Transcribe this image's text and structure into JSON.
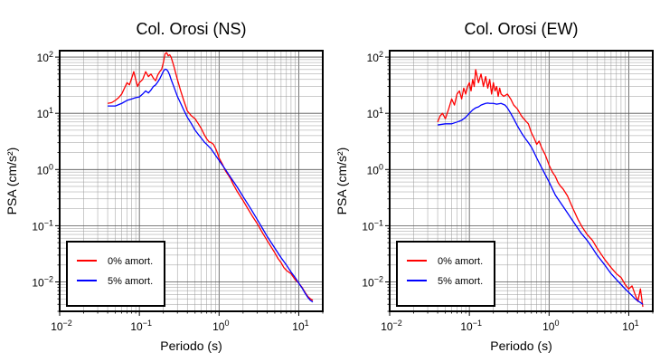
{
  "chart_data": [
    {
      "type": "line",
      "title": "Col. Orosi (NS)",
      "xlabel": "Periodo (s)",
      "ylabel": "PSA (cm/s²)",
      "xscale": "log",
      "yscale": "log",
      "xlim": [
        0.01,
        20
      ],
      "ylim": [
        0.003,
        130
      ],
      "grid": true,
      "legend_position": "bottom-left",
      "x_ticks": [
        {
          "base": "10",
          "exp": "−2"
        },
        {
          "base": "10",
          "exp": "−1"
        },
        {
          "base": "10",
          "exp": "0"
        },
        {
          "base": "10",
          "exp": "1"
        }
      ],
      "y_ticks": [
        {
          "base": "10",
          "exp": "−2"
        },
        {
          "base": "10",
          "exp": "−1"
        },
        {
          "base": "10",
          "exp": "0"
        },
        {
          "base": "10",
          "exp": "1"
        },
        {
          "base": "10",
          "exp": "2"
        }
      ],
      "series": [
        {
          "name": "0% amort.",
          "color": "#ff0000",
          "x": [
            0.04,
            0.045,
            0.05,
            0.055,
            0.06,
            0.065,
            0.07,
            0.075,
            0.08,
            0.085,
            0.09,
            0.095,
            0.1,
            0.11,
            0.12,
            0.13,
            0.14,
            0.15,
            0.16,
            0.17,
            0.18,
            0.19,
            0.2,
            0.21,
            0.22,
            0.23,
            0.24,
            0.25,
            0.27,
            0.3,
            0.33,
            0.36,
            0.4,
            0.45,
            0.5,
            0.55,
            0.6,
            0.65,
            0.7,
            0.75,
            0.8,
            0.85,
            0.9,
            0.95,
            1.0,
            1.1,
            1.2,
            1.3,
            1.4,
            1.5,
            1.7,
            2.0,
            2.3,
            2.6,
            3.0,
            3.5,
            4.0,
            4.5,
            5.0,
            5.5,
            6.0,
            6.5,
            7.0,
            8.0,
            9.0,
            10.0,
            11.0,
            12.0,
            13.0,
            14.0,
            15.0
          ],
          "y": [
            15,
            15.5,
            17,
            19,
            22,
            28,
            35,
            32,
            42,
            55,
            40,
            30,
            35,
            40,
            55,
            45,
            50,
            42,
            38,
            48,
            55,
            60,
            80,
            115,
            120,
            105,
            110,
            100,
            70,
            40,
            25,
            17,
            11,
            9,
            8,
            6.5,
            5.3,
            4.2,
            3.5,
            3.1,
            3.0,
            2.8,
            2.4,
            2.0,
            1.6,
            1.25,
            0.95,
            0.8,
            0.68,
            0.55,
            0.4,
            0.28,
            0.2,
            0.15,
            0.11,
            0.075,
            0.055,
            0.042,
            0.033,
            0.026,
            0.022,
            0.018,
            0.016,
            0.014,
            0.011,
            0.0095,
            0.008,
            0.0065,
            0.0055,
            0.005,
            0.0047
          ]
        },
        {
          "name": "5% amort.",
          "color": "#0000ff",
          "x": [
            0.04,
            0.05,
            0.06,
            0.07,
            0.08,
            0.09,
            0.1,
            0.11,
            0.12,
            0.13,
            0.14,
            0.15,
            0.16,
            0.17,
            0.18,
            0.19,
            0.2,
            0.21,
            0.22,
            0.23,
            0.24,
            0.25,
            0.27,
            0.3,
            0.33,
            0.36,
            0.4,
            0.45,
            0.5,
            0.55,
            0.6,
            0.65,
            0.7,
            0.8,
            0.9,
            1.0,
            1.2,
            1.4,
            1.7,
            2.0,
            2.5,
            3.0,
            3.5,
            4.0,
            5.0,
            6.0,
            7.0,
            8.0,
            9.0,
            10.0,
            11.0,
            12.0,
            13.0,
            14.0,
            15.0
          ],
          "y": [
            13.5,
            13.5,
            15,
            17,
            18,
            19,
            19.5,
            22,
            25,
            23,
            26,
            30,
            32,
            36,
            41,
            48,
            56,
            61,
            60,
            55,
            48,
            40,
            30,
            20,
            15,
            11.5,
            8.5,
            6.5,
            5.0,
            4.2,
            3.6,
            3.1,
            2.8,
            2.3,
            1.8,
            1.45,
            1.0,
            0.72,
            0.48,
            0.33,
            0.2,
            0.13,
            0.09,
            0.065,
            0.04,
            0.027,
            0.02,
            0.015,
            0.012,
            0.0095,
            0.0078,
            0.0063,
            0.0053,
            0.0047,
            0.0044
          ]
        }
      ]
    },
    {
      "type": "line",
      "title": "Col. Orosi (EW)",
      "xlabel": "Periodo (s)",
      "ylabel": "PSA (cm/s²)",
      "xscale": "log",
      "yscale": "log",
      "xlim": [
        0.01,
        20
      ],
      "ylim": [
        0.003,
        130
      ],
      "grid": true,
      "legend_position": "bottom-left",
      "x_ticks": [
        {
          "base": "10",
          "exp": "−2"
        },
        {
          "base": "10",
          "exp": "−1"
        },
        {
          "base": "10",
          "exp": "0"
        },
        {
          "base": "10",
          "exp": "1"
        }
      ],
      "y_ticks": [
        {
          "base": "10",
          "exp": "−2"
        },
        {
          "base": "10",
          "exp": "−1"
        },
        {
          "base": "10",
          "exp": "0"
        },
        {
          "base": "10",
          "exp": "1"
        },
        {
          "base": "10",
          "exp": "2"
        }
      ],
      "series": [
        {
          "name": "0% amort.",
          "color": "#ff0000",
          "x": [
            0.04,
            0.043,
            0.046,
            0.05,
            0.055,
            0.06,
            0.065,
            0.07,
            0.075,
            0.08,
            0.085,
            0.09,
            0.095,
            0.1,
            0.105,
            0.11,
            0.115,
            0.12,
            0.13,
            0.14,
            0.15,
            0.16,
            0.17,
            0.18,
            0.19,
            0.2,
            0.21,
            0.22,
            0.23,
            0.24,
            0.25,
            0.27,
            0.3,
            0.33,
            0.36,
            0.4,
            0.45,
            0.5,
            0.55,
            0.6,
            0.65,
            0.7,
            0.75,
            0.8,
            0.9,
            1.0,
            1.1,
            1.2,
            1.3,
            1.4,
            1.5,
            1.7,
            2.0,
            2.3,
            2.6,
            3.0,
            3.5,
            4.0,
            5.0,
            6.0,
            7.0,
            8.0,
            9.0,
            10.0,
            11.0,
            12.0,
            13.0,
            14.0,
            15.0
          ],
          "y": [
            7,
            9,
            10,
            8,
            12,
            18,
            14,
            22,
            25,
            18,
            28,
            22,
            30,
            35,
            25,
            40,
            30,
            60,
            35,
            50,
            30,
            45,
            28,
            40,
            22,
            35,
            25,
            30,
            20,
            28,
            22,
            20,
            22,
            18,
            14,
            12,
            9,
            7.5,
            6.5,
            4.5,
            3.6,
            2.8,
            3.2,
            2.5,
            1.8,
            1.2,
            0.9,
            0.75,
            0.58,
            0.5,
            0.45,
            0.34,
            0.2,
            0.13,
            0.095,
            0.07,
            0.055,
            0.04,
            0.025,
            0.018,
            0.014,
            0.012,
            0.009,
            0.0075,
            0.0085,
            0.006,
            0.0045,
            0.0075,
            0.0036
          ]
        },
        {
          "name": "5% amort.",
          "color": "#0000ff",
          "x": [
            0.04,
            0.05,
            0.06,
            0.07,
            0.08,
            0.09,
            0.1,
            0.11,
            0.12,
            0.13,
            0.14,
            0.15,
            0.16,
            0.17,
            0.18,
            0.2,
            0.22,
            0.25,
            0.28,
            0.3,
            0.33,
            0.36,
            0.4,
            0.45,
            0.5,
            0.55,
            0.6,
            0.65,
            0.7,
            0.8,
            0.9,
            1.0,
            1.2,
            1.5,
            2.0,
            2.5,
            3.0,
            3.5,
            4.0,
            5.0,
            6.0,
            7.0,
            8.0,
            9.0,
            10.0,
            11.0,
            12.0,
            13.0,
            14.0,
            15.0
          ],
          "y": [
            6.2,
            6.5,
            6.5,
            7,
            7.5,
            8.5,
            10,
            11.5,
            12.5,
            13,
            14,
            14.5,
            15,
            15.2,
            15,
            15,
            14.5,
            15,
            14,
            12.5,
            10,
            8,
            6,
            4.5,
            3.6,
            3.0,
            2.5,
            2.0,
            1.6,
            1.1,
            0.8,
            0.6,
            0.35,
            0.22,
            0.12,
            0.075,
            0.055,
            0.04,
            0.03,
            0.02,
            0.014,
            0.011,
            0.009,
            0.0075,
            0.0065,
            0.0057,
            0.005,
            0.0046,
            0.0043,
            0.004
          ]
        }
      ]
    }
  ]
}
